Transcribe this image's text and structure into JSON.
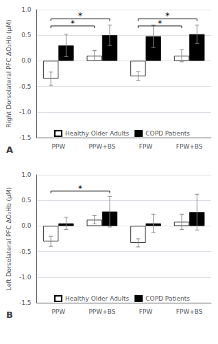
{
  "chart_data": [
    {
      "type": "bar",
      "title": "A",
      "ylabel": "Right Dorsolateral PFC ΔO₂Hb (μM)",
      "categories": [
        "PPW",
        "PPW+BS",
        "FPW",
        "FPW+BS"
      ],
      "series": [
        {
          "name": "Healthy Older Adults",
          "color": "white",
          "values": [
            -0.35,
            0.1,
            -0.3,
            0.1
          ],
          "errors": [
            0.13,
            0.1,
            0.09,
            0.12
          ]
        },
        {
          "name": "COPD Patients",
          "color": "black",
          "values": [
            0.3,
            0.5,
            0.48,
            0.52
          ],
          "errors": [
            0.22,
            0.2,
            0.22,
            0.18
          ]
        }
      ],
      "ylim": [
        -1.5,
        1.0
      ],
      "yticks": [
        -1.5,
        {
          "value": -1,
          "label": "-1.0"
        },
        -0.5,
        {
          "value": 0,
          "label": "0.0"
        },
        0.5,
        {
          "value": 1,
          "label": "1.0"
        }
      ],
      "grid": true,
      "legend": "lower center",
      "annotations": [
        {
          "text": "*",
          "from": {
            "category": "PPW",
            "series": "Healthy Older Adults"
          },
          "to": {
            "category": "PPW+BS",
            "series": "Healthy Older Adults"
          },
          "y": 0.68
        },
        {
          "text": "*",
          "from": {
            "category": "PPW",
            "series": "Healthy Older Adults"
          },
          "to": {
            "category": "PPW+BS",
            "series": "COPD Patients"
          },
          "y": 0.82
        },
        {
          "text": "*",
          "from": {
            "category": "FPW",
            "series": "Healthy Older Adults"
          },
          "to": {
            "category": "FPW+BS",
            "series": "Healthy Older Adults"
          },
          "y": 0.68
        },
        {
          "text": "*",
          "from": {
            "category": "FPW",
            "series": "Healthy Older Adults"
          },
          "to": {
            "category": "FPW+BS",
            "series": "COPD Patients"
          },
          "y": 0.82
        }
      ]
    },
    {
      "type": "bar",
      "title": "B",
      "ylabel": "Left Dorsolateral PFC ΔO₂Hb (μM)",
      "categories": [
        "PPW",
        "PPW+BS",
        "FPW",
        "FPW+BS"
      ],
      "series": [
        {
          "name": "Healthy Older Adults",
          "color": "white",
          "values": [
            -0.3,
            0.12,
            -0.33,
            0.08
          ],
          "errors": [
            0.1,
            0.08,
            0.08,
            0.15
          ]
        },
        {
          "name": "COPD Patients",
          "color": "black",
          "values": [
            0.05,
            0.28,
            0.05,
            0.27
          ],
          "errors": [
            0.12,
            0.3,
            0.18,
            0.35
          ]
        }
      ],
      "ylim": [
        -1.5,
        1.0
      ],
      "yticks": [
        -1.5,
        {
          "value": -1,
          "label": "-1.0"
        },
        -0.5,
        {
          "value": 0,
          "label": "0.0"
        },
        0.5,
        {
          "value": 1,
          "label": "1.0"
        }
      ],
      "grid": true,
      "legend": "lower center",
      "annotations": [
        {
          "text": "*",
          "from": {
            "category": "PPW",
            "series": "Healthy Older Adults"
          },
          "to": {
            "category": "PPW+BS",
            "series": "COPD Patients"
          },
          "y": 0.68
        }
      ]
    }
  ]
}
